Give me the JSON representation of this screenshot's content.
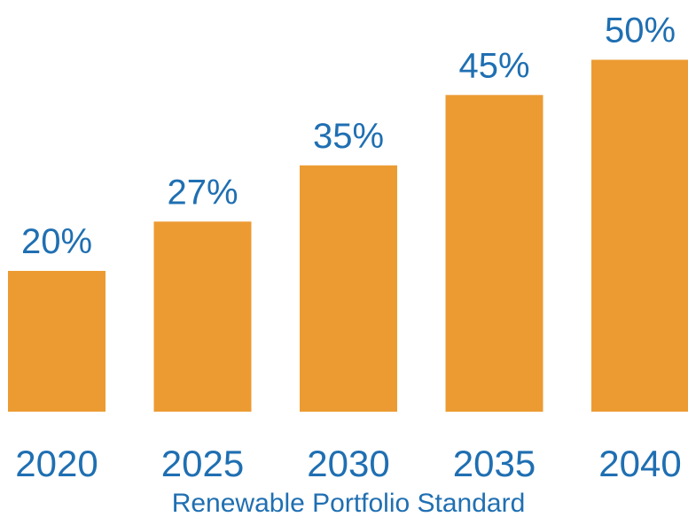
{
  "colors": {
    "bar": "#EC9B32",
    "text": "#1F6FB2",
    "background": "#FFFFFF"
  },
  "chart_data": {
    "type": "bar",
    "categories": [
      "2020",
      "2025",
      "2030",
      "2035",
      "2040"
    ],
    "values": [
      20,
      27,
      35,
      45,
      50
    ],
    "data_labels": [
      "20%",
      "27%",
      "35%",
      "45%",
      "50%"
    ],
    "title": "",
    "xlabel": "Renewable Portfolio Standard",
    "ylabel": "",
    "ylim": [
      0,
      50
    ],
    "grid": false,
    "legend": "none"
  }
}
